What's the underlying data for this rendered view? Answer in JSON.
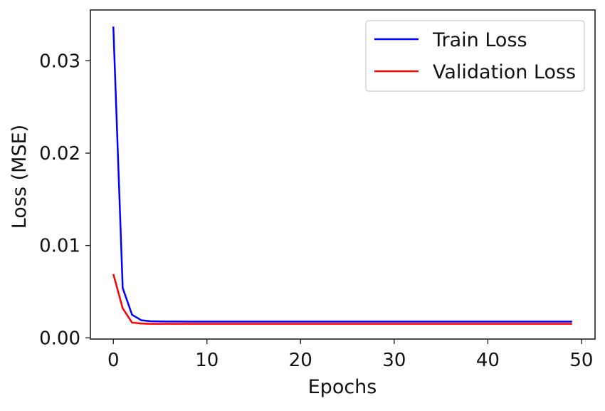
{
  "chart_data": {
    "type": "line",
    "title": "",
    "xlabel": "Epochs",
    "ylabel": "Loss (MSE)",
    "xlim": [
      -2.45,
      51.45
    ],
    "ylim": [
      -0.00013,
      0.0355
    ],
    "xticks": [
      0,
      10,
      20,
      30,
      40,
      50
    ],
    "xtick_labels": [
      "0",
      "10",
      "20",
      "30",
      "40",
      "50"
    ],
    "yticks": [
      0.0,
      0.01,
      0.02,
      0.03
    ],
    "ytick_labels": [
      "0.00",
      "0.01",
      "0.02",
      "0.03"
    ],
    "grid": false,
    "legend_position": "top-right",
    "series": [
      {
        "name": "Train Loss",
        "color": "#0000ff",
        "x": [
          0,
          1,
          2,
          3,
          4,
          5,
          6,
          7,
          8,
          9,
          10,
          11,
          12,
          13,
          14,
          15,
          16,
          17,
          18,
          19,
          20,
          21,
          22,
          23,
          24,
          25,
          26,
          27,
          28,
          29,
          30,
          31,
          32,
          33,
          34,
          35,
          36,
          37,
          38,
          39,
          40,
          41,
          42,
          43,
          44,
          45,
          46,
          47,
          48,
          49
        ],
        "y": [
          0.0337,
          0.0054,
          0.0025,
          0.0019,
          0.0018,
          0.00178,
          0.00177,
          0.00177,
          0.00176,
          0.00176,
          0.00176,
          0.00176,
          0.00176,
          0.00176,
          0.00176,
          0.00176,
          0.00176,
          0.00176,
          0.00176,
          0.00176,
          0.00176,
          0.00176,
          0.00176,
          0.00176,
          0.00176,
          0.00176,
          0.00176,
          0.00176,
          0.00176,
          0.00176,
          0.00176,
          0.00176,
          0.00176,
          0.00176,
          0.00176,
          0.00176,
          0.00176,
          0.00176,
          0.00176,
          0.00176,
          0.00176,
          0.00176,
          0.00176,
          0.00176,
          0.00176,
          0.00176,
          0.00176,
          0.00176,
          0.00176,
          0.00176
        ]
      },
      {
        "name": "Validation Loss",
        "color": "#ff0000",
        "x": [
          0,
          1,
          2,
          3,
          4,
          5,
          6,
          7,
          8,
          9,
          10,
          11,
          12,
          13,
          14,
          15,
          16,
          17,
          18,
          19,
          20,
          21,
          22,
          23,
          24,
          25,
          26,
          27,
          28,
          29,
          30,
          31,
          32,
          33,
          34,
          35,
          36,
          37,
          38,
          39,
          40,
          41,
          42,
          43,
          44,
          45,
          46,
          47,
          48,
          49
        ],
        "y": [
          0.0069,
          0.0032,
          0.00165,
          0.00155,
          0.00152,
          0.00152,
          0.00152,
          0.00152,
          0.00152,
          0.00152,
          0.00152,
          0.00152,
          0.00152,
          0.00152,
          0.00152,
          0.00152,
          0.00152,
          0.00152,
          0.00152,
          0.00152,
          0.00152,
          0.00152,
          0.00152,
          0.00152,
          0.00152,
          0.00152,
          0.00152,
          0.00152,
          0.00152,
          0.00152,
          0.00152,
          0.00152,
          0.00152,
          0.00152,
          0.00152,
          0.00152,
          0.00152,
          0.00152,
          0.00152,
          0.00152,
          0.00152,
          0.00152,
          0.00152,
          0.00152,
          0.00152,
          0.00152,
          0.00152,
          0.00152,
          0.00152,
          0.00152
        ]
      }
    ]
  }
}
